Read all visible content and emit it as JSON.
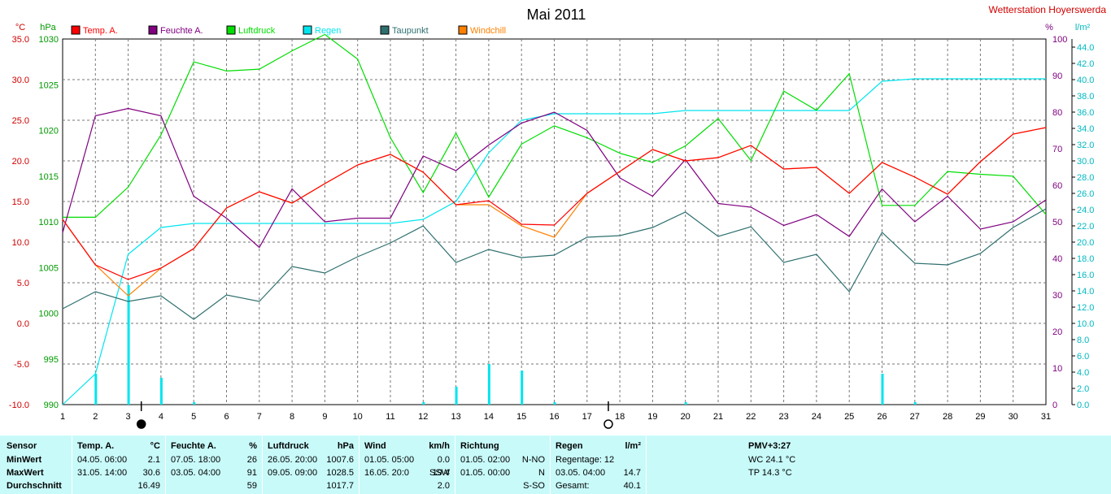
{
  "colors": {
    "temp": "#ff0000",
    "humidity": "#800080",
    "pressure": "#00dd00",
    "rain": "#00e5ee",
    "dewpoint": "#2f6f6f",
    "windchill": "#ff8000",
    "station": "#d00000",
    "stats_bg": "#c8fafa"
  },
  "header": {
    "station": "Wetterstation Hoyerswerda"
  },
  "chart_data": {
    "type": "line",
    "title": "Mai 2011",
    "x": [
      1,
      2,
      3,
      4,
      5,
      6,
      7,
      8,
      9,
      10,
      11,
      12,
      13,
      14,
      15,
      16,
      17,
      18,
      19,
      20,
      21,
      22,
      23,
      24,
      25,
      26,
      27,
      28,
      29,
      30,
      31
    ],
    "xlim": [
      1,
      31
    ],
    "grid": true,
    "legend_position": "top",
    "axes": {
      "temp": {
        "unit": "°C",
        "range": [
          -10,
          35
        ],
        "ticks": [
          "35.0",
          "30.0",
          "25.0",
          "20.0",
          "15.0",
          "10.0",
          "5.0",
          "0.0",
          "-5.0",
          "-10.0"
        ]
      },
      "pressure": {
        "unit": "hPa",
        "range": [
          990,
          1030
        ],
        "ticks": [
          "1030",
          "1025",
          "1020",
          "1015",
          "1010",
          "1005",
          "1000",
          "995",
          "990"
        ]
      },
      "humidity": {
        "unit": "%",
        "range": [
          0,
          100
        ],
        "ticks": [
          "100",
          "90",
          "80",
          "70",
          "60",
          "50",
          "40",
          "30",
          "20",
          "10",
          "0"
        ]
      },
      "rain": {
        "unit": "l/m²",
        "range": [
          0,
          45
        ],
        "ticks": [
          "44.0",
          "42.0",
          "40.0",
          "38.0",
          "36.0",
          "34.0",
          "32.0",
          "30.0",
          "28.0",
          "26.0",
          "24.0",
          "22.0",
          "20.0",
          "18.0",
          "16.0",
          "14.0",
          "12.0",
          "10.0",
          "8.0",
          "6.0",
          "4.0",
          "2.0",
          "0.0"
        ]
      }
    },
    "series": [
      {
        "name": "Temp. A.",
        "color_key": "temp",
        "axis": "temp",
        "values": [
          12.8,
          7.2,
          5.4,
          6.8,
          9.2,
          14.2,
          16.2,
          14.8,
          17.2,
          19.5,
          20.8,
          18.6,
          14.6,
          15.1,
          12.2,
          12.1,
          16.0,
          18.7,
          21.4,
          20.0,
          20.4,
          21.9,
          19.0,
          19.2,
          16.0,
          19.8,
          18.0,
          15.9,
          19.9,
          23.3,
          24.1
        ]
      },
      {
        "name": "Feuchte A.",
        "color_key": "humidity",
        "axis": "humidity",
        "values": [
          47,
          79,
          81,
          79,
          57,
          51,
          43,
          59,
          50,
          51,
          51,
          68,
          64,
          71,
          77,
          80,
          75,
          62,
          57,
          67,
          55,
          54,
          49,
          52,
          46,
          59,
          50,
          57,
          48,
          50,
          56
        ]
      },
      {
        "name": "Luftdruck",
        "color_key": "pressure",
        "axis": "pressure",
        "values": [
          1010.5,
          1010.5,
          1013.8,
          1019.5,
          1027.5,
          1026.5,
          1026.7,
          1028.7,
          1030.5,
          1027.8,
          1019.2,
          1013.2,
          1019.7,
          1012.7,
          1018.5,
          1020.5,
          1019.2,
          1017.5,
          1016.5,
          1018.3,
          1021.3,
          1016.7,
          1024.3,
          1022.2,
          1026.2,
          1011.8,
          1011.8,
          1015.5,
          1015.2,
          1015.0,
          1010.8
        ]
      },
      {
        "name": "Regen",
        "color_key": "rain",
        "axis": "rain",
        "values": [
          0.0,
          3.8,
          18.5,
          21.8,
          22.3,
          22.3,
          22.3,
          22.3,
          22.3,
          22.3,
          22.3,
          22.8,
          25.0,
          31.0,
          35.0,
          35.8,
          35.8,
          35.8,
          35.8,
          36.2,
          36.2,
          36.2,
          36.2,
          36.2,
          36.2,
          39.8,
          40.1,
          40.1,
          40.1,
          40.1,
          40.1
        ]
      },
      {
        "name": "Taupunkt",
        "color_key": "dewpoint",
        "axis": "temp",
        "values": [
          1.8,
          3.9,
          2.7,
          3.4,
          0.5,
          3.5,
          2.7,
          7.0,
          6.2,
          8.2,
          9.9,
          12.0,
          7.5,
          9.1,
          8.1,
          8.4,
          10.6,
          10.8,
          11.8,
          13.7,
          10.7,
          11.9,
          7.5,
          8.5,
          3.9,
          11.2,
          7.4,
          7.2,
          8.6,
          11.8,
          14.1
        ]
      },
      {
        "name": "Windchill",
        "color_key": "windchill",
        "axis": "temp",
        "values": [
          12.8,
          7.2,
          3.4,
          6.8,
          9.2,
          14.2,
          16.2,
          14.8,
          17.2,
          19.5,
          20.8,
          18.6,
          14.6,
          14.6,
          12.0,
          10.6,
          16.0,
          18.7,
          21.4,
          20.0,
          20.4,
          21.9,
          19.0,
          19.2,
          16.0,
          19.8,
          18.0,
          15.9,
          19.9,
          23.3,
          24.1
        ]
      }
    ],
    "rain_daily": {
      "days": [
        2,
        3,
        4,
        5,
        12,
        13,
        14,
        15,
        16,
        20,
        26,
        27
      ],
      "values": [
        3.8,
        14.7,
        3.3,
        0.3,
        0.3,
        2.2,
        5.0,
        4.2,
        0.3,
        0.3,
        3.8,
        0.3
      ]
    },
    "moon_phases": [
      {
        "day": 3.4,
        "phase": "new"
      },
      {
        "day": 17.65,
        "phase": "full"
      }
    ]
  },
  "stats": {
    "sensor": {
      "header": "Sensor",
      "rows": [
        "MinWert",
        "MaxWert",
        "Durchschnitt"
      ]
    },
    "temp": {
      "header": "Temp. A.",
      "unit": "°C",
      "min_time": "04.05.  06:00",
      "min_val": "2.1",
      "max_time": "31.05.  14:00",
      "max_val": "30.6",
      "avg": "16.49"
    },
    "humidity": {
      "header": "Feuchte A.",
      "unit": "%",
      "min_time": "07.05.  18:00",
      "min_val": "26",
      "max_time": "03.05.  04:00",
      "max_val": "91",
      "avg": "59"
    },
    "pressure": {
      "header": "Luftdruck",
      "unit": "hPa",
      "min_time": "26.05.  20:00",
      "min_val": "1007.6",
      "max_time": "09.05.  09:00",
      "max_val": "1028.5",
      "avg": "1017.7"
    },
    "wind": {
      "header": "Wind",
      "unit": "km/h",
      "min_time": "01.05.  05:00",
      "min_val": "0.0",
      "max_time": "16.05.  20:0",
      "max_dir": "SSW",
      "max_val": "19.4",
      "avg": "2.0"
    },
    "direction": {
      "header": "Richtung",
      "min_time": "01.05.  02:00",
      "min_val": "N-NO",
      "max_time": "01.05.  00:00",
      "max_val": "N",
      "avg": "S-SO"
    },
    "rain": {
      "header": "Regen",
      "unit": "l/m²",
      "regentage": "Regentage: 12",
      "max_time": "03.05.  04:00",
      "max_val": "14.7",
      "total_label": "Gesamt:",
      "total_val": "40.1"
    },
    "pmv": {
      "header": "PMV+3:27",
      "wc": "WC 24.1 °C",
      "tp": "TP 14.3 °C"
    }
  }
}
